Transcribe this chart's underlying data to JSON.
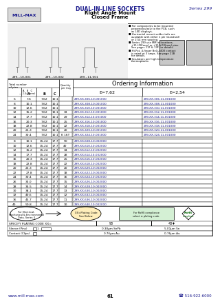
{
  "title_main": "DUAL-IN-LINE SOCKETS",
  "title_sub1": "Right Angle Mount",
  "title_sub2": "Closed Frame",
  "series": "Series 299",
  "brand": "MILL-MAX",
  "bg_color": "#ffffff",
  "ordering_title": "Ordering Information",
  "e762_header": "E=7,62",
  "e254_header": "E=2,54",
  "rows_group1": [
    [
      6,
      7.6,
      7.62,
      10.1,
      "",
      "299-XX-306-10-001000",
      "299-XX-306-11-001000"
    ],
    [
      8,
      10.1,
      7.62,
      10.1,
      "",
      "299-XX-308-10-001000",
      "299-XX-308-11-001000"
    ],
    [
      10,
      12.6,
      7.62,
      10.1,
      "",
      "299-XX-310-10-001000",
      "299-XX-310-11-001000"
    ],
    [
      12,
      15.2,
      7.62,
      10.1,
      33,
      "299-XX-312-10-001000",
      "299-XX-312-11-001000"
    ],
    [
      14,
      17.7,
      7.62,
      10.1,
      29,
      "299-XX-314-10-001000",
      "299-XX-314-11-001000"
    ],
    [
      16,
      20.3,
      7.62,
      10.1,
      25,
      "299-XX-316-10-001000",
      "299-XX-316-11-001000"
    ],
    [
      18,
      22.8,
      7.62,
      10.1,
      22,
      "299-XX-318-10-001000",
      "299-XX-318-11-001000"
    ],
    [
      20,
      25.3,
      7.62,
      10.1,
      20,
      "299-XX-320-10-001000",
      "299-XX-320-11-001000"
    ],
    [
      24,
      30.4,
      7.62,
      10.1,
      "K 16T",
      "299-XX-324-10-001000",
      "299-XX-324-11-001000"
    ]
  ],
  "rows_group2": [
    [
      8,
      10.1,
      15.24,
      17.7,
      50,
      "299-XX-608-10-002000",
      ""
    ],
    [
      10,
      12.6,
      15.24,
      17.7,
      40,
      "299-XX-610-10-002000",
      ""
    ],
    [
      12,
      15.2,
      15.24,
      17.7,
      34,
      "299-XX-612-10-002000",
      ""
    ],
    [
      14,
      17.7,
      15.24,
      17.7,
      28,
      "299-XX-614-10-002000",
      ""
    ],
    [
      16,
      20.3,
      15.24,
      17.7,
      25,
      "299-XX-616-10-002000",
      ""
    ],
    [
      18,
      22.8,
      15.24,
      17.7,
      22,
      "299-XX-618-10-002000",
      ""
    ],
    [
      20,
      25.3,
      15.24,
      17.7,
      20,
      "299-XX-620-10-002000",
      ""
    ],
    [
      22,
      27.8,
      15.24,
      17.7,
      18,
      "299-XX-622-10-002000",
      ""
    ],
    [
      24,
      30.4,
      15.24,
      17.7,
      16,
      "299-XX-624-10-002000",
      ""
    ],
    [
      26,
      33.0,
      15.24,
      17.7,
      15,
      "299-XX-626-10-002000",
      ""
    ],
    [
      28,
      35.5,
      15.24,
      17.7,
      14,
      "299-XX-628-10-002000",
      ""
    ],
    [
      30,
      38.1,
      15.24,
      17.7,
      13,
      "299-XX-630-10-002000",
      ""
    ],
    [
      32,
      40.6,
      15.24,
      17.7,
      12,
      "299-XX-632-10-002000",
      ""
    ],
    [
      36,
      45.7,
      15.24,
      17.7,
      11,
      "299-XX-636-10-002000",
      ""
    ],
    [
      40,
      50.8,
      15.24,
      17.7,
      10,
      "299-XX-640-10-002000",
      ""
    ]
  ],
  "footer_left": "www.mill-max.com",
  "footer_right": "516-922-6000",
  "footer_page": "61",
  "plating_label": "SPECIFY PLATING CODE XX=",
  "plating_code": "93",
  "plating_code2": "43♦",
  "sleeve_label": "Sleeve (Pins)",
  "sleeve_val1": "0.38μm SnPb",
  "sleeve_val2": "5.00μm Sn",
  "contact_label": "Contact (Clips)",
  "contact_val1": "0.76μm Au",
  "contact_val2": "0.76μm Au",
  "bullet1": "For components to be mounted\nperpendicularly to the PCB, such\nas LED displays.",
  "bullet2": "Horizontal mount solder tails are\navailable with either 1 plz (standard)\nor 2.54 mm spacing.",
  "bullet3": "Series 299 use MM in locations,\n+11/-00(mm) or +11/+00(mm) pins.\nSee pages 11F & 13F for details.",
  "bullet4": "Hi-Pot, 4-finger BeCu 400 contact\nis rated at 3 amps. See page 21B\nfor details.",
  "bullet5": "Insulators are high temperature\nthermoplastic.",
  "drawing_labels": [
    "299...10-001",
    "299...10-002",
    "299...11-001"
  ],
  "for_elec_text": [
    "For Electrical,",
    "Mechanical & Environmental",
    "Data, Series 4"
  ],
  "xx_plating_text": [
    "XX=Plating Code",
    "See Below"
  ],
  "for_rohs_text": [
    "For RoHS compliance",
    "select ♦ plating code."
  ],
  "rohs_text": [
    "RoHS",
    "compliant"
  ]
}
